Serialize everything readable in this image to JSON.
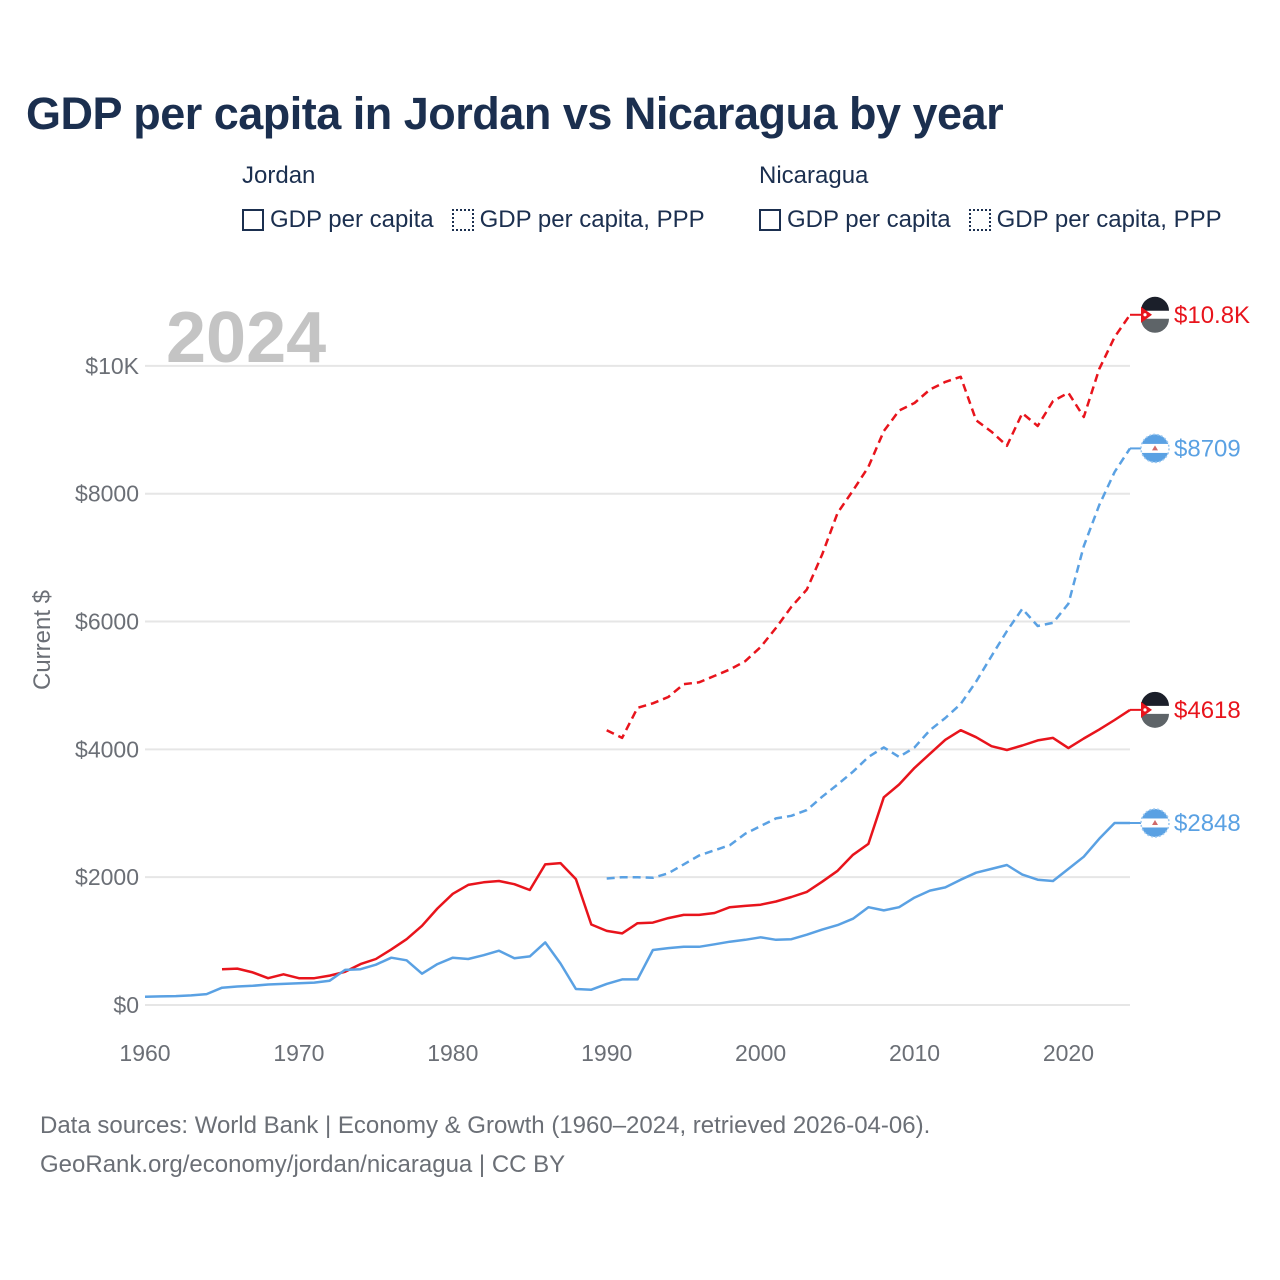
{
  "title": "GDP per capita in Jordan vs Nicaragua by year",
  "legend": {
    "groups": [
      {
        "country": "Jordan",
        "color": "#e8141c",
        "items": [
          {
            "label": "GDP per capita",
            "style": "solid"
          },
          {
            "label": "GDP per capita, PPP",
            "style": "dotted"
          }
        ]
      },
      {
        "country": "Nicaragua",
        "color": "#5aa1e3",
        "items": [
          {
            "label": "GDP per capita",
            "style": "solid"
          },
          {
            "label": "GDP per capita, PPP",
            "style": "dotted"
          }
        ]
      }
    ]
  },
  "year_watermark": "2024",
  "footer": {
    "line1": "Data sources: World Bank | Economy & Growth (1960–2024, retrieved 2026-04-06).",
    "line2": "GeoRank.org/economy/jordan/nicaragua | CC BY"
  },
  "colors": {
    "jordan": "#e8141c",
    "nicaragua": "#5aa1e3",
    "grid": "#e6e6e6",
    "axis_text": "#6b6f76"
  },
  "chart_data": {
    "type": "line",
    "title": "GDP per capita in Jordan vs Nicaragua by year",
    "xlabel": "",
    "ylabel": "Current $",
    "xlim": [
      1960,
      2024
    ],
    "ylim": [
      0,
      11000
    ],
    "x_ticks": [
      1960,
      1970,
      1980,
      1990,
      2000,
      2010,
      2020
    ],
    "x_tick_labels": [
      "1960",
      "1970",
      "1980",
      "1990",
      "2000",
      "2010",
      "2020"
    ],
    "y_ticks": [
      0,
      2000,
      4000,
      6000,
      8000,
      10000
    ],
    "y_tick_labels": [
      "$0",
      "$2000",
      "$4000",
      "$6000",
      "$8000",
      "$10K"
    ],
    "grid": true,
    "series": [
      {
        "name": "Jordan GDP per capita, PPP",
        "country": "Jordan",
        "style": "dashed",
        "color": "#e8141c",
        "end_label": "$10.8K",
        "start_year": 1990,
        "values": [
          4300,
          4180,
          4650,
          4720,
          4820,
          5020,
          5050,
          5150,
          5250,
          5380,
          5600,
          5900,
          6230,
          6500,
          7050,
          7700,
          8050,
          8420,
          8980,
          9300,
          9420,
          9630,
          9750,
          9830,
          9150,
          8970,
          8750,
          9260,
          9060,
          9450,
          9580,
          9200,
          9950,
          10450,
          10800
        ]
      },
      {
        "name": "Nicaragua GDP per capita, PPP",
        "country": "Nicaragua",
        "style": "dashed",
        "color": "#5aa1e3",
        "end_label": "$8709",
        "start_year": 1990,
        "values": [
          1980,
          2000,
          2000,
          1990,
          2060,
          2200,
          2340,
          2420,
          2500,
          2680,
          2800,
          2920,
          2960,
          3050,
          3260,
          3450,
          3650,
          3880,
          4030,
          3880,
          4030,
          4300,
          4490,
          4710,
          5060,
          5460,
          5850,
          6200,
          5930,
          5980,
          6280,
          7180,
          7820,
          8340,
          8709
        ]
      },
      {
        "name": "Jordan GDP per capita",
        "country": "Jordan",
        "style": "solid",
        "color": "#e8141c",
        "end_label": "$4618",
        "start_year": 1965,
        "values": [
          560,
          570,
          510,
          420,
          480,
          420,
          420,
          460,
          520,
          640,
          720,
          870,
          1030,
          1240,
          1510,
          1740,
          1880,
          1920,
          1940,
          1890,
          1800,
          2200,
          2220,
          1970,
          1260,
          1160,
          1120,
          1280,
          1290,
          1360,
          1410,
          1410,
          1440,
          1530,
          1550,
          1570,
          1620,
          1690,
          1770,
          1930,
          2100,
          2350,
          2520,
          3250,
          3450,
          3710,
          3930,
          4150,
          4300,
          4190,
          4050,
          3990,
          4060,
          4140,
          4180,
          4020,
          4170,
          4310,
          4460,
          4618
        ]
      },
      {
        "name": "Nicaragua GDP per capita",
        "country": "Nicaragua",
        "style": "solid",
        "color": "#5aa1e3",
        "end_label": "$2848",
        "start_year": 1960,
        "values": [
          130,
          135,
          140,
          150,
          170,
          270,
          290,
          300,
          320,
          330,
          340,
          350,
          380,
          550,
          560,
          630,
          740,
          700,
          490,
          640,
          740,
          720,
          780,
          850,
          730,
          760,
          980,
          650,
          250,
          240,
          330,
          400,
          400,
          860,
          890,
          910,
          910,
          950,
          990,
          1020,
          1060,
          1020,
          1030,
          1100,
          1180,
          1250,
          1350,
          1530,
          1480,
          1530,
          1680,
          1790,
          1840,
          1960,
          2070,
          2130,
          2190,
          2040,
          1960,
          1940,
          2130,
          2320,
          2600,
          2848,
          2848
        ]
      }
    ]
  }
}
